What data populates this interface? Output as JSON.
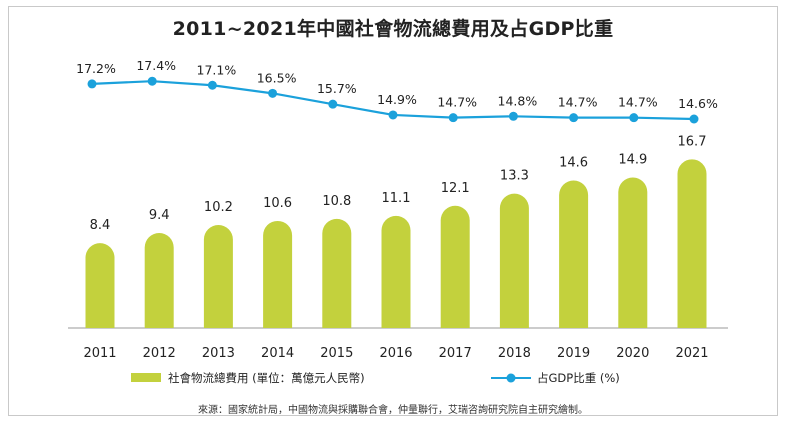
{
  "chart_data": {
    "type": "bar+line",
    "title": "2011~2021年中國社會物流總費用及占GDP比重",
    "categories": [
      "2011",
      "2012",
      "2013",
      "2014",
      "2015",
      "2016",
      "2017",
      "2018",
      "2019",
      "2020",
      "2021"
    ],
    "series": [
      {
        "name": "社會物流總費用 (單位：萬億元人民幣)",
        "type": "bar",
        "color": "#c3d13d",
        "values": [
          8.4,
          9.4,
          10.2,
          10.6,
          10.8,
          11.1,
          12.1,
          13.3,
          14.6,
          14.9,
          16.7
        ],
        "labels": [
          "8.4",
          "9.4",
          "10.2",
          "10.6",
          "10.8",
          "11.1",
          "12.1",
          "13.3",
          "14.6",
          "14.9",
          "16.7"
        ]
      },
      {
        "name": "占GDP比重 (%)",
        "type": "line",
        "color": "#1ba1db",
        "values": [
          17.2,
          17.4,
          17.1,
          16.5,
          15.7,
          14.9,
          14.7,
          14.8,
          14.7,
          14.7,
          14.6
        ],
        "labels": [
          "17.2%",
          "17.4%",
          "17.1%",
          "16.5%",
          "15.7%",
          "14.9%",
          "14.7%",
          "14.8%",
          "14.7%",
          "14.7%",
          "14.6%"
        ]
      }
    ],
    "legend": "bottom",
    "grid": false
  },
  "source": "來源：國家統計局，中國物流與採購聯合會，仲量聯行，艾瑞咨詢研究院自主研究繪制。"
}
